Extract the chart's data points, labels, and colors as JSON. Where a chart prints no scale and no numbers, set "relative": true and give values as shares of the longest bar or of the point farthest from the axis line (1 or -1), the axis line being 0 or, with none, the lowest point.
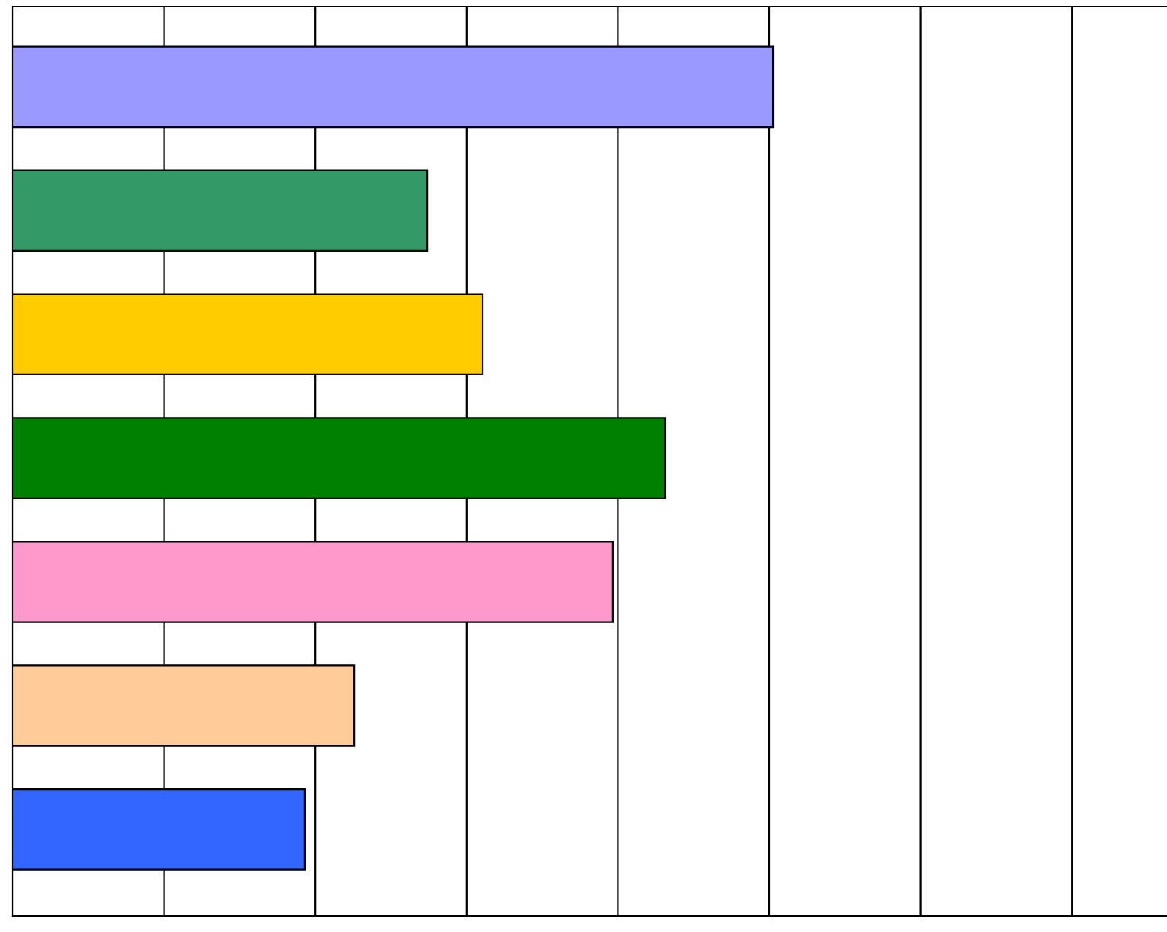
{
  "chart_data": {
    "type": "bar",
    "orientation": "horizontal",
    "relative": true,
    "grid": "x",
    "categories": [
      null,
      null,
      null,
      null,
      null,
      null,
      null
    ],
    "values": [
      1,
      0.545,
      0.618,
      0.858,
      0.789,
      0.449,
      0.384
    ],
    "colors": [
      "#9999ff",
      "#339966",
      "#ffcc00",
      "#008000",
      "#ff99cc",
      "#ffcc99",
      "#3366ff"
    ]
  }
}
